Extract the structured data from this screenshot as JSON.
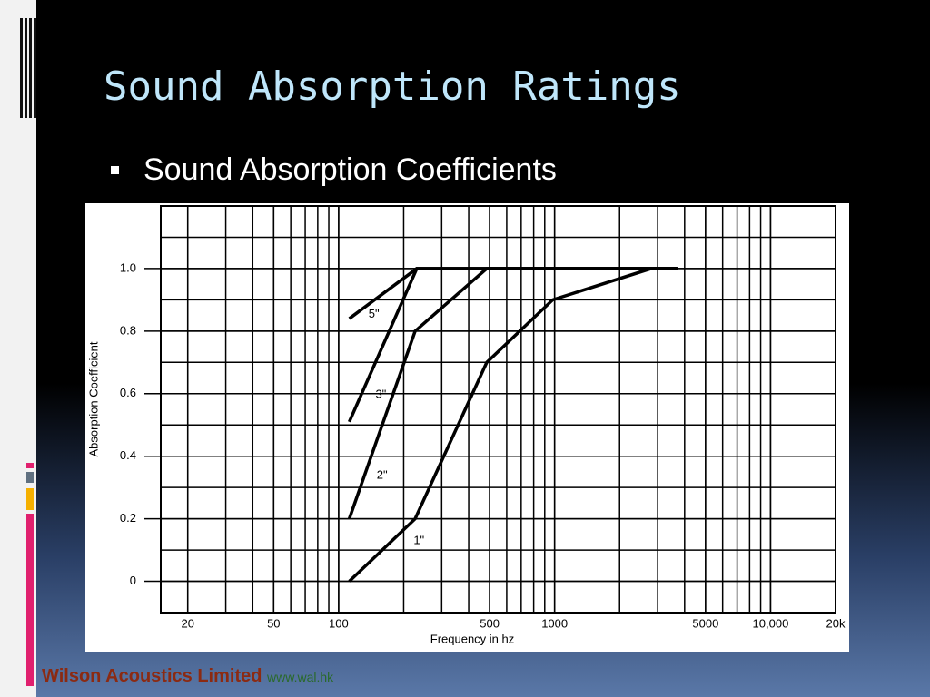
{
  "slide": {
    "title": "Sound Absorption Ratings",
    "bullet": "Sound Absorption Coefficients",
    "footer_company": "Wilson Acoustics Limited",
    "footer_url": "www.wal.hk"
  },
  "chart_data": {
    "type": "line",
    "x_label": "Frequency in hz",
    "y_label": "Absorption Coefficient",
    "x_log": true,
    "grid": true,
    "xlim": [
      15,
      20000
    ],
    "ylim": [
      -0.1,
      1.2
    ],
    "xticks": [
      20,
      50,
      100,
      500,
      1000,
      5000,
      {
        "value": 10000,
        "label": "10,000"
      },
      {
        "value": 20000,
        "label": "20k"
      }
    ],
    "yticks": [
      0,
      0.2,
      0.4,
      0.6,
      0.8,
      {
        "value": 1,
        "label": "1.0"
      }
    ],
    "series": [
      {
        "name": "5\"",
        "color": "#000000",
        "x": [
          112,
          230,
          3700
        ],
        "values": [
          0.84,
          1,
          1
        ]
      },
      {
        "name": "3\"",
        "color": "#000000",
        "x": [
          112,
          230,
          3700
        ],
        "values": [
          0.51,
          1,
          1
        ]
      },
      {
        "name": "2\"",
        "color": "#000000",
        "x": [
          112,
          226,
          485,
          3700
        ],
        "values": [
          0.2,
          0.8,
          1,
          1
        ]
      },
      {
        "name": "1\"",
        "color": "#000000",
        "x": [
          112,
          226,
          485,
          980,
          2800,
          3700
        ],
        "values": [
          0,
          0.2,
          0.7,
          0.9,
          1,
          1
        ]
      }
    ]
  }
}
